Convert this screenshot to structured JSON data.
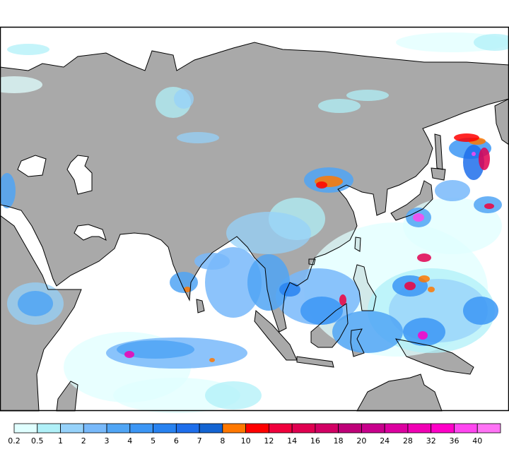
{
  "map": {
    "land_color": "#a9a9a9",
    "ocean_color": "#ffffff",
    "coastline_color": "#000000"
  },
  "colorbar": {
    "labels": [
      "0.2",
      "0.5",
      "1",
      "2",
      "3",
      "4",
      "5",
      "6",
      "7",
      "8",
      "10",
      "12",
      "14",
      "16",
      "18",
      "20",
      "24",
      "28",
      "32",
      "36",
      "40"
    ],
    "colors": [
      "#e0ffff",
      "#b0f0f8",
      "#96d2fa",
      "#78b9fa",
      "#50a5f5",
      "#3c96f5",
      "#2882f0",
      "#1e6eeb",
      "#1464d2",
      "#ff7800",
      "#ff0000",
      "#f0003c",
      "#e00050",
      "#d20064",
      "#be0078",
      "#c8008c",
      "#dc00a0",
      "#f000b4",
      "#ff00c8",
      "#ff46f0",
      "#ff73f5"
    ]
  }
}
